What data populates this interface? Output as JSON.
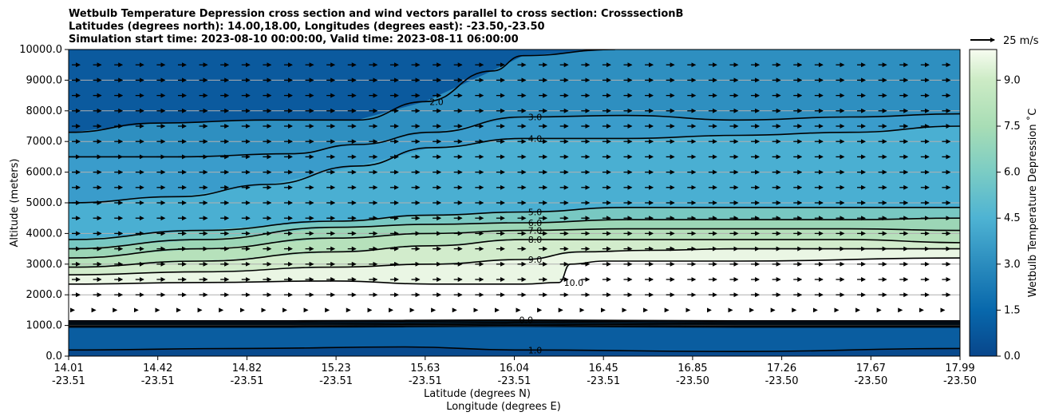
{
  "chart_data": {
    "type": "contour",
    "title_lines": [
      "Wetbulb Temperature Depression cross section and wind vectors parallel to cross section: CrosssectionB",
      "Latitudes (degrees north): 14.00,18.00, Longitudes (degrees east): -23.50,-23.50",
      "Simulation start time: 2023-08-10 00:00:00, Valid time: 2023-08-11 06:00:00"
    ],
    "ylabel": "Altitude (meters)",
    "xlabel_lat": "Latitude (degrees N)",
    "xlabel_lon": "Longitude (degrees E)",
    "ylim": [
      0,
      10000
    ],
    "yticks": [
      "0.0",
      "1000.0",
      "2000.0",
      "3000.0",
      "4000.0",
      "5000.0",
      "6000.0",
      "7000.0",
      "8000.0",
      "9000.0",
      "10000.0"
    ],
    "xtick_lat": [
      "14.01",
      "14.42",
      "14.82",
      "15.23",
      "15.63",
      "16.04",
      "16.45",
      "16.85",
      "17.26",
      "17.67",
      "17.99"
    ],
    "xtick_lon": [
      "-23.51",
      "-23.51",
      "-23.51",
      "-23.51",
      "-23.51",
      "-23.51",
      "-23.51",
      "-23.50",
      "-23.50",
      "-23.50",
      "-23.50"
    ],
    "colorbar": {
      "label": "Wetbulb Temperature Depression ˚C",
      "range": [
        0,
        10
      ],
      "ticks": [
        "0.0",
        "1.5",
        "3.0",
        "4.5",
        "6.0",
        "7.5",
        "9.0"
      ]
    },
    "quiver_key": "25 m/s",
    "contour_lines": [
      {
        "level": 0.0,
        "label": "0.0",
        "points": [
          [
            14.01,
            1150
          ],
          [
            15.0,
            1150
          ],
          [
            16.0,
            1180
          ],
          [
            17.0,
            1150
          ],
          [
            17.99,
            1150
          ]
        ]
      },
      {
        "level": 1.0,
        "label": "1.0",
        "points": [
          [
            14.01,
            200
          ],
          [
            14.8,
            250
          ],
          [
            15.5,
            300
          ],
          [
            16.04,
            200
          ],
          [
            17.0,
            150
          ],
          [
            17.99,
            250
          ]
        ]
      },
      {
        "level": 2.0,
        "label": "2.0",
        "points": [
          [
            14.01,
            7300
          ],
          [
            14.4,
            7600
          ],
          [
            14.9,
            7700
          ],
          [
            15.3,
            7700
          ],
          [
            15.6,
            8300
          ],
          [
            15.9,
            9300
          ],
          [
            16.04,
            9800
          ],
          [
            16.45,
            10000
          ]
        ]
      },
      {
        "level": 3.0,
        "label": "3.0",
        "points": [
          [
            14.01,
            6500
          ],
          [
            14.5,
            6500
          ],
          [
            15.0,
            6600
          ],
          [
            15.3,
            6900
          ],
          [
            15.63,
            7300
          ],
          [
            16.04,
            7800
          ],
          [
            16.5,
            7850
          ],
          [
            17.0,
            7700
          ],
          [
            17.5,
            7800
          ],
          [
            17.99,
            7900
          ]
        ]
      },
      {
        "level": 4.0,
        "label": "4.0",
        "points": [
          [
            14.01,
            5000
          ],
          [
            14.5,
            5200
          ],
          [
            14.9,
            5600
          ],
          [
            15.3,
            6200
          ],
          [
            15.63,
            6800
          ],
          [
            16.04,
            7100
          ],
          [
            16.5,
            7100
          ],
          [
            17.0,
            7200
          ],
          [
            17.5,
            7300
          ],
          [
            17.99,
            7500
          ]
        ]
      },
      {
        "level": 5.0,
        "label": "5.0",
        "points": [
          [
            14.01,
            3800
          ],
          [
            14.6,
            4100
          ],
          [
            15.2,
            4400
          ],
          [
            15.63,
            4600
          ],
          [
            16.04,
            4700
          ],
          [
            16.5,
            4850
          ],
          [
            17.0,
            4850
          ],
          [
            17.5,
            4850
          ],
          [
            17.99,
            4850
          ]
        ]
      },
      {
        "level": 6.0,
        "label": "6.0",
        "points": [
          [
            14.01,
            3500
          ],
          [
            14.6,
            3800
          ],
          [
            15.2,
            4200
          ],
          [
            15.63,
            4300
          ],
          [
            16.04,
            4350
          ],
          [
            16.5,
            4450
          ],
          [
            17.0,
            4450
          ],
          [
            17.5,
            4450
          ],
          [
            17.99,
            4500
          ]
        ]
      },
      {
        "level": 7.0,
        "label": "7.0",
        "points": [
          [
            14.01,
            3200
          ],
          [
            14.6,
            3500
          ],
          [
            15.2,
            3850
          ],
          [
            15.63,
            4000
          ],
          [
            16.04,
            4100
          ],
          [
            16.5,
            4150
          ],
          [
            17.0,
            4150
          ],
          [
            17.5,
            4150
          ],
          [
            17.99,
            4100
          ]
        ]
      },
      {
        "level": 8.0,
        "label": "8.0",
        "points": [
          [
            14.01,
            2900
          ],
          [
            14.6,
            3100
          ],
          [
            15.2,
            3400
          ],
          [
            15.63,
            3600
          ],
          [
            16.04,
            3800
          ],
          [
            16.5,
            3800
          ],
          [
            17.0,
            3800
          ],
          [
            17.5,
            3800
          ],
          [
            17.99,
            3700
          ]
        ]
      },
      {
        "level": 9.0,
        "label": "9.0",
        "points": [
          [
            14.01,
            2650
          ],
          [
            14.6,
            2750
          ],
          [
            15.2,
            2900
          ],
          [
            15.63,
            3000
          ],
          [
            16.04,
            3150
          ],
          [
            16.3,
            3400
          ],
          [
            16.6,
            3450
          ],
          [
            17.0,
            3500
          ],
          [
            17.99,
            3500
          ]
        ]
      },
      {
        "level": 10.0,
        "label": "10.0",
        "points": [
          [
            14.01,
            2350
          ],
          [
            14.6,
            2400
          ],
          [
            15.2,
            2450
          ],
          [
            15.63,
            2350
          ],
          [
            16.04,
            2350
          ],
          [
            16.2,
            2400
          ],
          [
            16.25,
            3000
          ],
          [
            16.4,
            3100
          ],
          [
            17.0,
            3100
          ],
          [
            17.99,
            3200
          ]
        ]
      }
    ]
  }
}
